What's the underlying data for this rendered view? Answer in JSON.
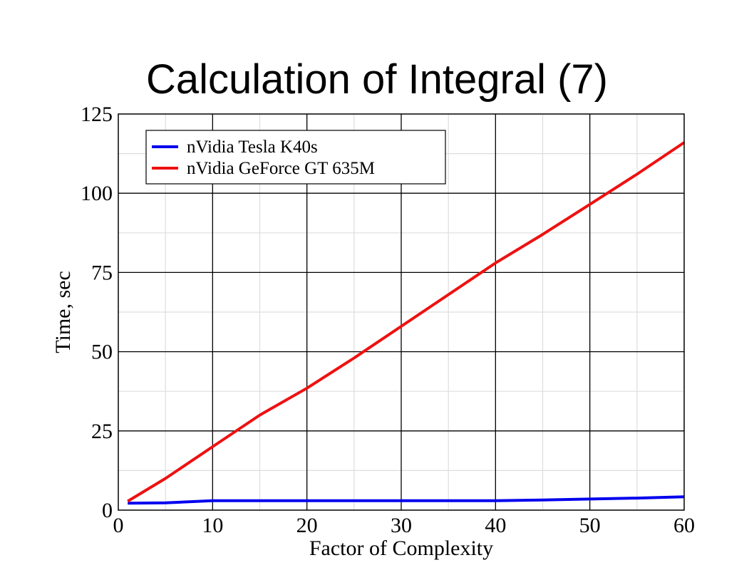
{
  "slide": {
    "title": "Calculation of Integral (7)"
  },
  "colors": {
    "series_1": "#0000ee",
    "series_2": "#ee1111",
    "major_grid": "#000000",
    "minor_grid": "#dddddd"
  },
  "chart_data": {
    "type": "line",
    "title": "",
    "xlabel": "Factor of Complexity",
    "ylabel": "Time, sec",
    "xlim": [
      0,
      60
    ],
    "ylim": [
      0,
      125
    ],
    "xticks": [
      "0",
      "10",
      "20",
      "30",
      "40",
      "50",
      "60"
    ],
    "yticks": [
      "0",
      "25",
      "50",
      "75",
      "100",
      "125"
    ],
    "grid": true,
    "legend_position": "top-left",
    "series": [
      {
        "name": "nVidia Tesla K40s",
        "x": [
          1,
          5,
          10,
          15,
          20,
          25,
          30,
          35,
          40,
          45,
          50,
          55,
          60
        ],
        "y": [
          2.2,
          2.3,
          3.0,
          3.0,
          3.0,
          3.0,
          3.0,
          3.0,
          3.0,
          3.2,
          3.5,
          3.8,
          4.2
        ]
      },
      {
        "name": "nVidia GeForce GT 635M",
        "x": [
          1,
          5,
          10,
          15,
          20,
          25,
          30,
          35,
          40,
          45,
          50,
          55,
          60
        ],
        "y": [
          2.8,
          10,
          20,
          30,
          38.5,
          48,
          58,
          68,
          78,
          87,
          96.5,
          106,
          116
        ]
      }
    ]
  }
}
